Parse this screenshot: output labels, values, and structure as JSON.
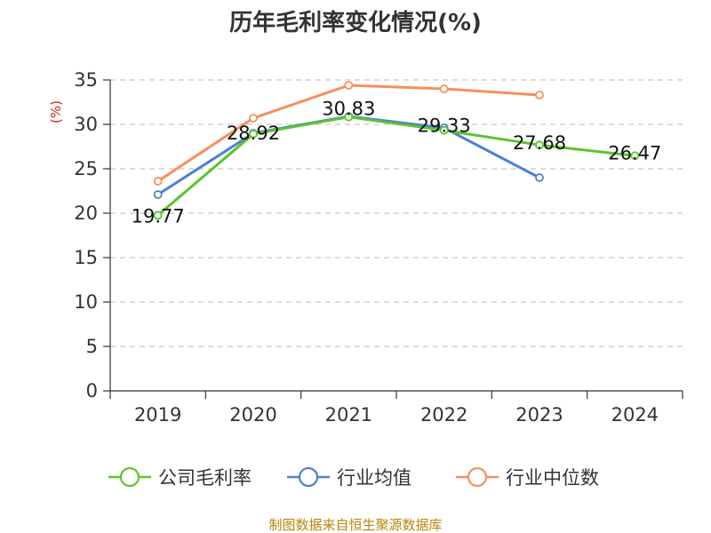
{
  "chart_data": {
    "type": "line",
    "title": "历年毛利率变化情况(%)",
    "ylabel": "(%)",
    "xlabel": "",
    "categories": [
      "2019",
      "2020",
      "2021",
      "2022",
      "2023",
      "2024"
    ],
    "ylim": [
      0,
      35
    ],
    "yticks": [
      0,
      5,
      10,
      15,
      20,
      25,
      30,
      35
    ],
    "grid": "horizontal-dashed",
    "legend_position": "bottom",
    "series": [
      {
        "name": "公司毛利率",
        "color": "#5cc52a",
        "values": [
          19.77,
          28.92,
          30.83,
          29.33,
          27.68,
          26.47
        ],
        "labels": [
          "19.77",
          "28.92",
          "30.83",
          "29.33",
          "27.68",
          "26.47"
        ]
      },
      {
        "name": "行业均值",
        "color": "#4e7fd6",
        "values": [
          22.1,
          29.0,
          30.9,
          29.6,
          24.0,
          null
        ]
      },
      {
        "name": "行业中位数",
        "color": "#f5905c",
        "values": [
          23.6,
          30.7,
          34.4,
          34.0,
          33.3,
          null
        ]
      }
    ]
  },
  "source": "制图数据来自恒生聚源数据库"
}
